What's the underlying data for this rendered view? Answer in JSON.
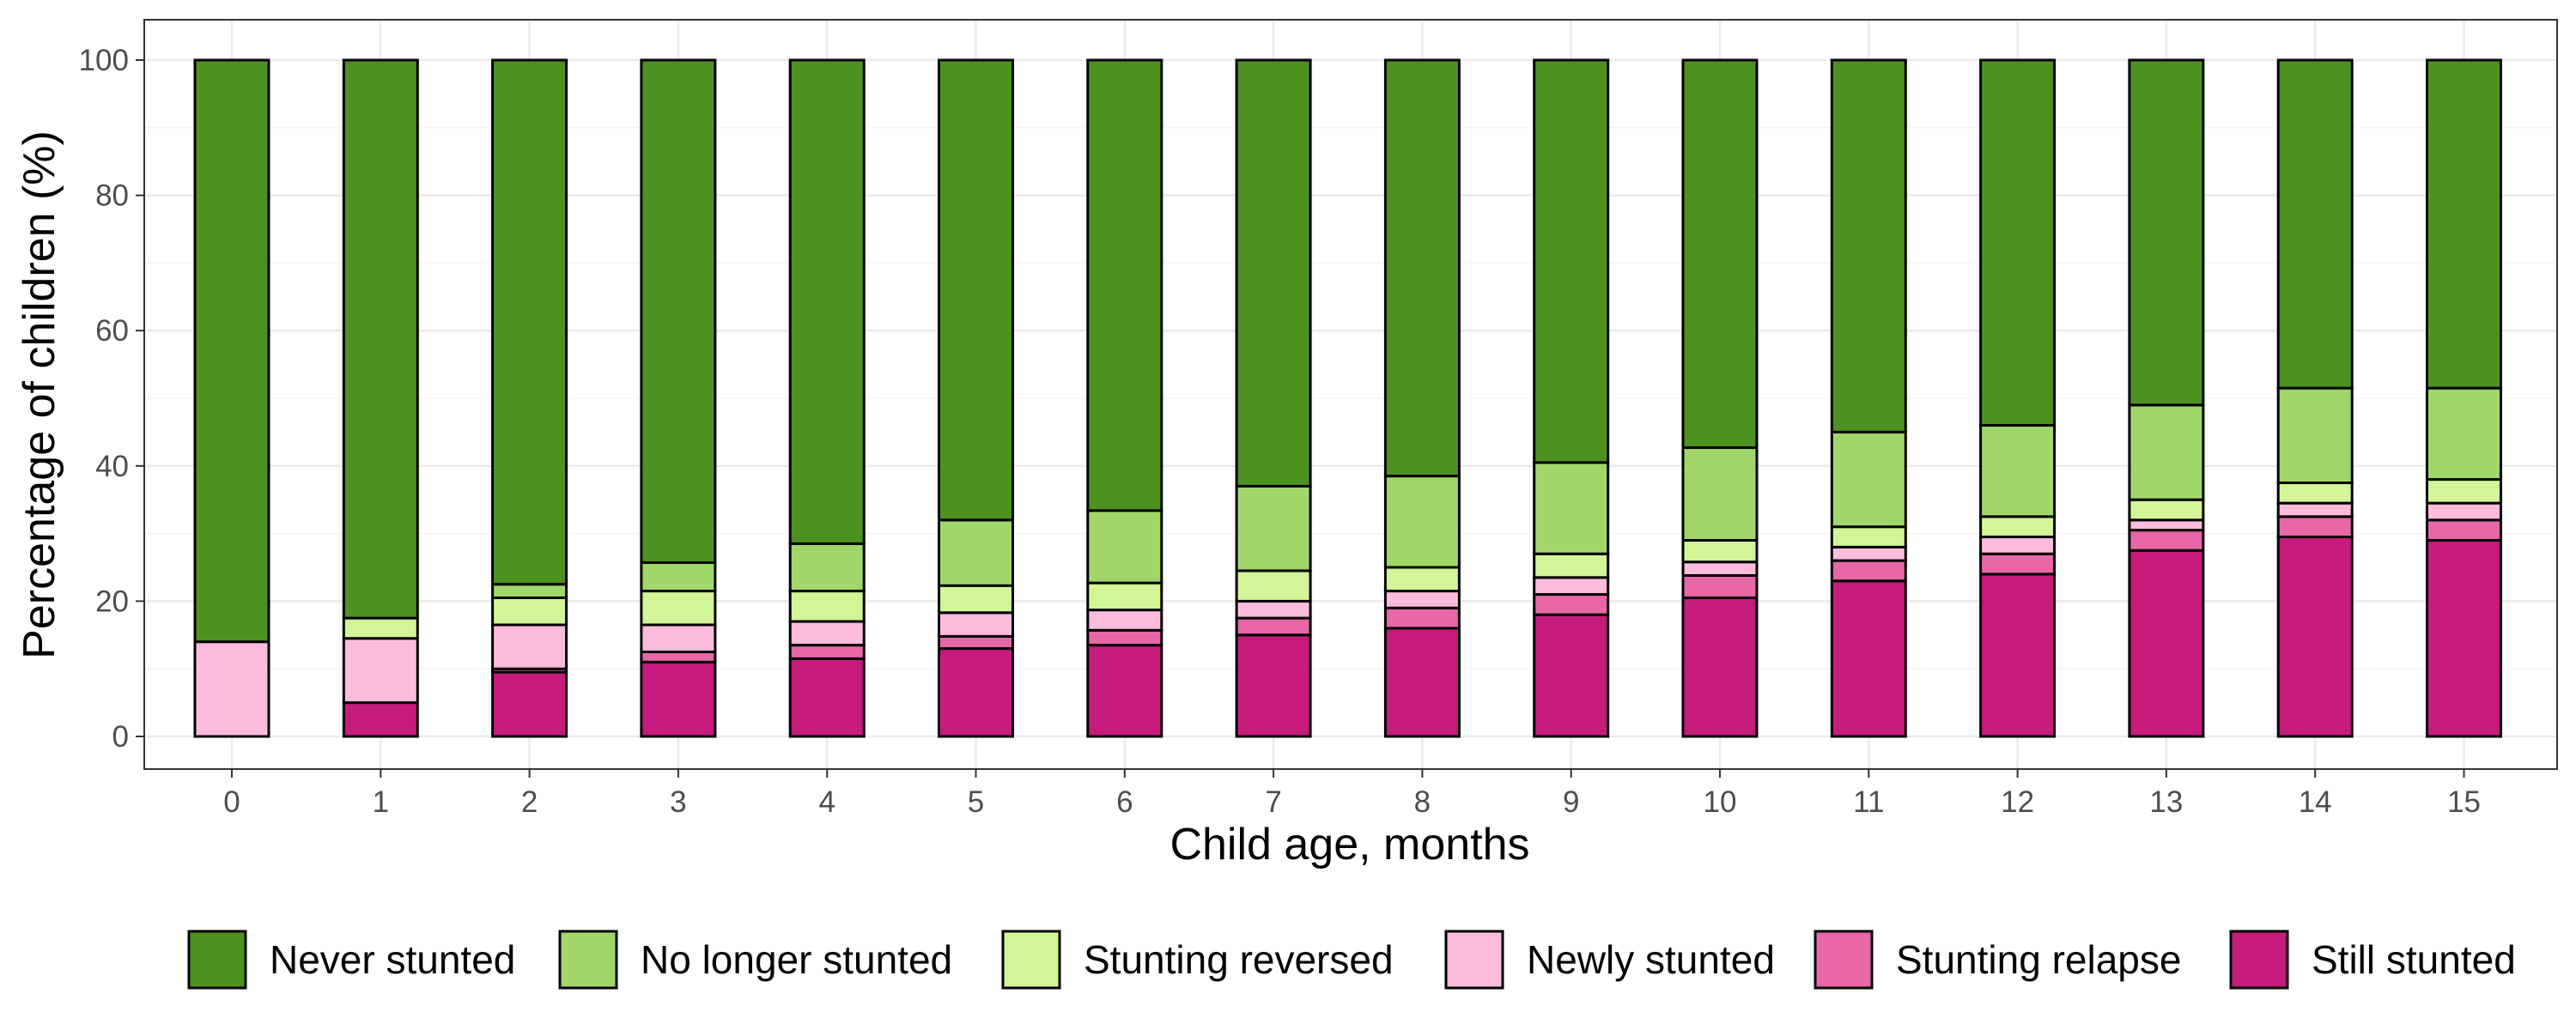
{
  "chart_data": {
    "type": "bar",
    "stacked": true,
    "x_axis_title": "Child age, months",
    "y_axis_title": "Percentage of children (%)",
    "ylim": [
      0,
      100
    ],
    "y_ticks": [
      "0",
      "20",
      "40",
      "60",
      "80",
      "100"
    ],
    "categories": [
      "0",
      "1",
      "2",
      "3",
      "4",
      "5",
      "6",
      "7",
      "8",
      "9",
      "10",
      "11",
      "12",
      "13",
      "14",
      "15"
    ],
    "series": [
      {
        "name": "Still stunted",
        "color": "#c51b7d",
        "values": [
          0,
          5,
          9.5,
          11,
          11.5,
          13,
          13.5,
          15,
          16,
          18,
          20.5,
          23,
          24,
          27.5,
          29.5,
          29
        ]
      },
      {
        "name": "Stunting relapse",
        "color": "#e767a8",
        "values": [
          0,
          0,
          0.5,
          1.5,
          2,
          1.8,
          2.2,
          2.5,
          3,
          3,
          3.3,
          3,
          3,
          3,
          3,
          3
        ]
      },
      {
        "name": "Newly stunted",
        "color": "#fdbbdd",
        "values": [
          14,
          9.5,
          6.5,
          4,
          3.5,
          3.5,
          3,
          2.5,
          2.5,
          2.5,
          2,
          2,
          2.5,
          1.5,
          2,
          2.5
        ]
      },
      {
        "name": "Stunting reversed",
        "color": "#d2f598",
        "values": [
          0,
          3,
          4,
          5,
          4.5,
          4,
          4,
          4.5,
          3.5,
          3.5,
          3.2,
          3,
          3,
          3,
          3,
          3.5
        ]
      },
      {
        "name": "No longer stunted",
        "color": "#a1d76a",
        "values": [
          0,
          0,
          2,
          4.2,
          7,
          9.7,
          10.7,
          12.5,
          13.5,
          13.5,
          13.7,
          14,
          13.5,
          14,
          14,
          13.5
        ]
      },
      {
        "name": "Never stunted",
        "color": "#4d9221",
        "values": [
          86,
          82.5,
          77.5,
          74.3,
          71.5,
          68,
          66.6,
          63,
          61.5,
          59.5,
          57.3,
          55,
          54,
          51,
          48.5,
          48.5
        ]
      }
    ],
    "legend": {
      "position": "bottom",
      "order": [
        "Never stunted",
        "No longer stunted",
        "Stunting reversed",
        "Newly stunted",
        "Stunting relapse",
        "Still stunted"
      ]
    },
    "grid": true
  }
}
